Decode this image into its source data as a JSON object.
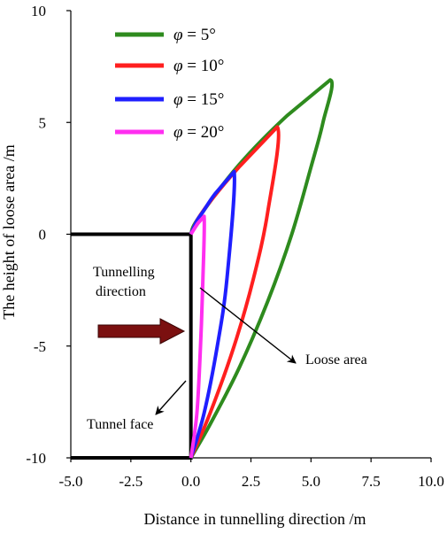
{
  "chart_data": {
    "type": "line",
    "xlabel": "Distance in tunnelling direction /m",
    "ylabel": "The height of loose area /m",
    "xlim": [
      -5.0,
      10.0
    ],
    "ylim": [
      -10,
      10
    ],
    "xticks": [
      "-5.0",
      "-2.5",
      "0.0",
      "2.5",
      "5.0",
      "7.5",
      "10.0"
    ],
    "xtick_values": [
      -5.0,
      -2.5,
      0.0,
      2.5,
      5.0,
      7.5,
      10.0
    ],
    "yticks": [
      "-10",
      "-5",
      "0",
      "5",
      "10"
    ],
    "ytick_values": [
      -10,
      -5,
      0,
      5,
      10
    ],
    "grid": false,
    "legend_position": "top-left",
    "series": [
      {
        "name": "φ = 5°",
        "phi": "5°",
        "color": "#2e8b1e",
        "points": [
          [
            0,
            -10
          ],
          [
            0.8,
            -8.5
          ],
          [
            2.0,
            -6.0
          ],
          [
            3.2,
            -3.0
          ],
          [
            4.2,
            0.0
          ],
          [
            5.0,
            3.0
          ],
          [
            5.5,
            5.0
          ],
          [
            5.8,
            6.9
          ],
          [
            4.0,
            5.3
          ],
          [
            2.0,
            3.1
          ],
          [
            0.3,
            0.7
          ],
          [
            0,
            0
          ]
        ]
      },
      {
        "name": "φ = 10°",
        "phi": "10°",
        "color": "#ff1f1f",
        "points": [
          [
            0,
            -10
          ],
          [
            0.8,
            -8.0
          ],
          [
            1.8,
            -5.0
          ],
          [
            2.6,
            -2.0
          ],
          [
            3.2,
            1.0
          ],
          [
            3.6,
            4.8
          ],
          [
            2.0,
            3.0
          ],
          [
            0.9,
            1.6
          ],
          [
            0.3,
            0.7
          ],
          [
            0,
            0
          ]
        ]
      },
      {
        "name": "φ = 15°",
        "phi": "15°",
        "color": "#1f1fff",
        "points": [
          [
            0,
            -10
          ],
          [
            0.55,
            -8.0
          ],
          [
            1.1,
            -5.0
          ],
          [
            1.5,
            -2.0
          ],
          [
            1.8,
            2.8
          ],
          [
            1.0,
            1.8
          ],
          [
            0.5,
            1.0
          ],
          [
            0.25,
            0.6
          ],
          [
            0,
            0
          ]
        ]
      },
      {
        "name": "φ = 20°",
        "phi": "20°",
        "color": "#ff2ef0",
        "points": [
          [
            0,
            -10
          ],
          [
            0.25,
            -8.0
          ],
          [
            0.4,
            -5.0
          ],
          [
            0.5,
            -2.0
          ],
          [
            0.55,
            0.8
          ],
          [
            0.3,
            0.5
          ],
          [
            0,
            0
          ]
        ]
      }
    ],
    "tunnel": {
      "points": [
        [
          -5.0,
          -10
        ],
        [
          0,
          -10
        ],
        [
          0,
          0
        ],
        [
          -5.0,
          0
        ]
      ],
      "color": "#000000"
    },
    "annotations": {
      "tunnelling": "Tunnelling",
      "direction": "direction",
      "loose_area": "Loose area",
      "tunnel_face": "Tunnel face"
    },
    "arrow_color": "#7b1010"
  }
}
